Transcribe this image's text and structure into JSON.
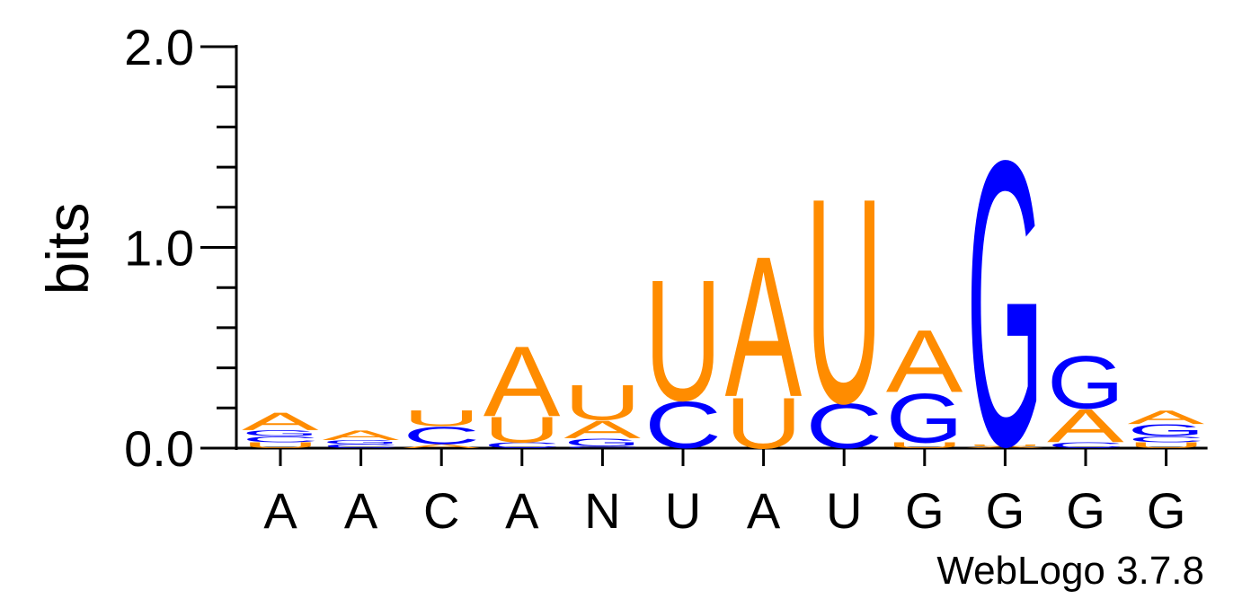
{
  "chart_data": {
    "type": "sequence-logo",
    "ylabel": "bits",
    "ylim": [
      0,
      2.0
    ],
    "y_ticks": [
      "0.0",
      "1.0",
      "2.0"
    ],
    "positions": [
      "A",
      "A",
      "C",
      "A",
      "N",
      "U",
      "A",
      "U",
      "G",
      "G",
      "G",
      "G"
    ],
    "colors": {
      "A": "#ff8c00",
      "U": "#ff8c00",
      "C": "#0000ff",
      "G": "#0000ff"
    },
    "stacks": [
      [
        {
          "letter": "U",
          "bits": 0.03
        },
        {
          "letter": "C",
          "bits": 0.03
        },
        {
          "letter": "G",
          "bits": 0.03
        },
        {
          "letter": "A",
          "bits": 0.09
        }
      ],
      [
        {
          "letter": "C",
          "bits": 0.02
        },
        {
          "letter": "G",
          "bits": 0.02
        },
        {
          "letter": "A",
          "bits": 0.05
        }
      ],
      [
        {
          "letter": "A",
          "bits": 0.02
        },
        {
          "letter": "C",
          "bits": 0.09
        },
        {
          "letter": "U",
          "bits": 0.08
        }
      ],
      [
        {
          "letter": "C",
          "bits": 0.03
        },
        {
          "letter": "U",
          "bits": 0.13
        },
        {
          "letter": "A",
          "bits": 0.36
        }
      ],
      [
        {
          "letter": "C",
          "bits": 0.01
        },
        {
          "letter": "G",
          "bits": 0.04
        },
        {
          "letter": "A",
          "bits": 0.09
        },
        {
          "letter": "U",
          "bits": 0.18
        }
      ],
      [
        {
          "letter": "C",
          "bits": 0.24
        },
        {
          "letter": "U",
          "bits": 0.62
        }
      ],
      [
        {
          "letter": "U",
          "bits": 0.26
        },
        {
          "letter": "A",
          "bits": 0.72
        }
      ],
      [
        {
          "letter": "C",
          "bits": 0.23
        },
        {
          "letter": "U",
          "bits": 1.05
        }
      ],
      [
        {
          "letter": "U",
          "bits": 0.03
        },
        {
          "letter": "G",
          "bits": 0.25
        },
        {
          "letter": "A",
          "bits": 0.32
        }
      ],
      [
        {
          "letter": "A",
          "bits": 0.01
        },
        {
          "letter": "U",
          "bits": 0.01
        },
        {
          "letter": "G",
          "bits": 1.46
        }
      ],
      [
        {
          "letter": "C",
          "bits": 0.03
        },
        {
          "letter": "A",
          "bits": 0.17
        },
        {
          "letter": "G",
          "bits": 0.27
        }
      ],
      [
        {
          "letter": "U",
          "bits": 0.03
        },
        {
          "letter": "C",
          "bits": 0.03
        },
        {
          "letter": "G",
          "bits": 0.06
        },
        {
          "letter": "A",
          "bits": 0.07
        }
      ]
    ],
    "credit": "WebLogo 3.7.8",
    "grid": false
  }
}
